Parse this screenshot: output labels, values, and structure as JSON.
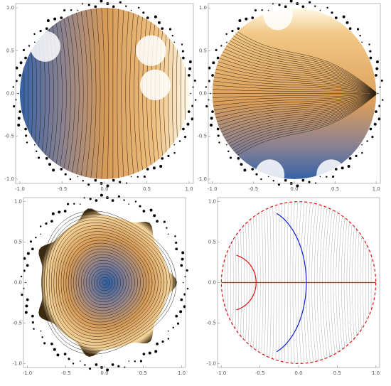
{
  "chart_data": [
    {
      "type": "contour",
      "xlim": [
        -1.05,
        1.05
      ],
      "ylim": [
        -1.05,
        1.05
      ],
      "xticks": [
        {
          "value": -1,
          "label": "-1.0"
        },
        -0.5,
        {
          "value": 0,
          "label": "0.0"
        },
        0.5,
        {
          "value": 1,
          "label": "1.0"
        }
      ],
      "yticks": [
        {
          "value": -1,
          "label": "-1.0"
        },
        -0.5,
        {
          "value": 0,
          "label": "0.0"
        },
        0.5,
        {
          "value": 1,
          "label": "1.0"
        }
      ]
    },
    {
      "type": "contour",
      "xlim": [
        -1.05,
        1.05
      ],
      "ylim": [
        -1.05,
        1.05
      ],
      "xticks": [
        {
          "value": -1,
          "label": "-1.0"
        },
        -0.5,
        {
          "value": 0,
          "label": "0.0"
        },
        0.5,
        {
          "value": 1,
          "label": "1.0"
        }
      ],
      "yticks": [
        {
          "value": -1,
          "label": "-1.0"
        },
        -0.5,
        {
          "value": 0,
          "label": "0.0"
        },
        0.5,
        {
          "value": 1,
          "label": "1.0"
        }
      ]
    },
    {
      "type": "contour",
      "xlim": [
        -1.05,
        1.05
      ],
      "ylim": [
        -1.05,
        1.05
      ],
      "xticks": [
        {
          "value": -1,
          "label": "-1.0"
        },
        -0.5,
        {
          "value": 0,
          "label": "0.0"
        },
        0.5,
        {
          "value": 1,
          "label": "1.0"
        }
      ],
      "yticks": [
        {
          "value": -1,
          "label": "-1.0"
        },
        -0.5,
        {
          "value": 0,
          "label": "0.0"
        },
        0.5,
        {
          "value": 1,
          "label": "1.0"
        }
      ]
    },
    {
      "type": "contour",
      "xlim": [
        -1.05,
        1.05
      ],
      "ylim": [
        -1.05,
        1.05
      ],
      "xticks": [
        {
          "value": -1,
          "label": "-1.0"
        },
        -0.5,
        {
          "value": 0,
          "label": "0.0"
        },
        0.5,
        {
          "value": 1,
          "label": "1.0"
        }
      ],
      "yticks": [
        {
          "value": -1,
          "label": "-1.0"
        },
        -0.5,
        {
          "value": 0,
          "label": "0.0"
        },
        0.5,
        {
          "value": 1,
          "label": "1.0"
        }
      ]
    }
  ]
}
